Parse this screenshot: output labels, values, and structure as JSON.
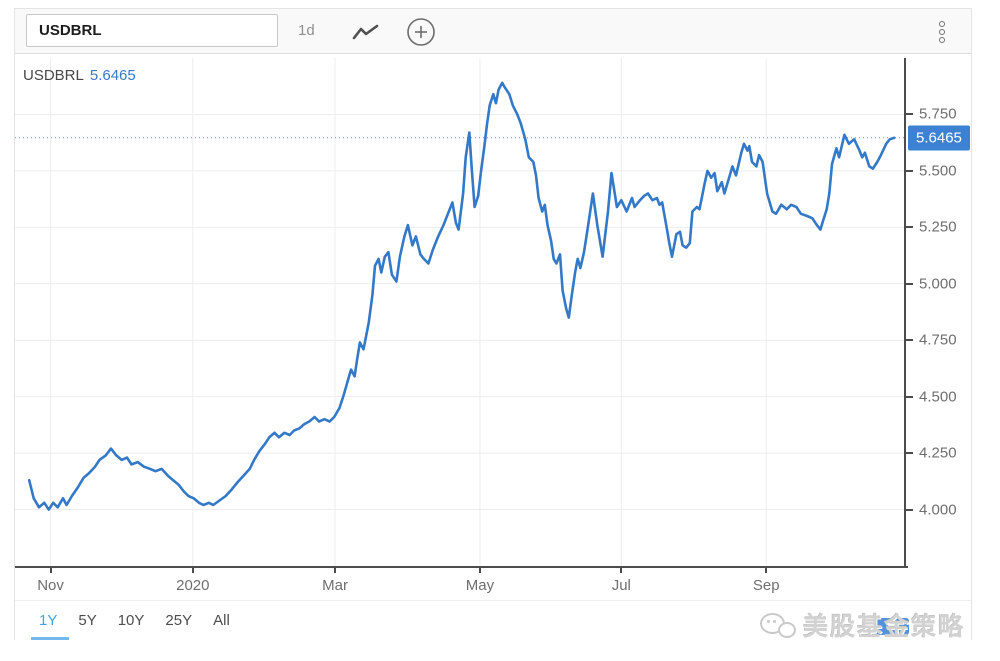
{
  "toolbar": {
    "symbol_value": "USDBRL",
    "interval": "1d"
  },
  "legend": {
    "symbol": "USDBRL",
    "price": "5.6465"
  },
  "price_axis": {
    "current_price_label": "5.6465"
  },
  "range_selector": {
    "options": [
      "1Y",
      "5Y",
      "10Y",
      "25Y",
      "All"
    ],
    "active": "1Y"
  },
  "watermark": {
    "text": "美股基金策略"
  },
  "colors": {
    "line_blue": "#3379c8",
    "price_label_bg": "#3d82d2",
    "active_range_blue": "#3fa2e4",
    "dotted_price_line": "#5b9bd5"
  },
  "chart_data": {
    "type": "line",
    "title": "USDBRL 1Y daily line chart",
    "series_name": "USDBRL",
    "current_value": 5.6465,
    "ylim": [
      3.75,
      6.0
    ],
    "y_tick_labels": [
      "4.000",
      "4.250",
      "4.500",
      "4.750",
      "5.000",
      "5.250",
      "5.500",
      "5.750"
    ],
    "x_ticks": [
      {
        "label": "Nov",
        "f": 0.04
      },
      {
        "label": "2020",
        "f": 0.2
      },
      {
        "label": "Mar",
        "f": 0.36
      },
      {
        "label": "May",
        "f": 0.523
      },
      {
        "label": "Jul",
        "f": 0.682
      },
      {
        "label": "Sep",
        "f": 0.845
      }
    ],
    "x_axis_note": "f = fraction of time axis from late Oct 2019 (0) to late Oct 2020 (1)",
    "grid": true,
    "line_color": "#3379c8",
    "points": [
      [
        0.016,
        4.13
      ],
      [
        0.021,
        4.05
      ],
      [
        0.027,
        4.01
      ],
      [
        0.033,
        4.03
      ],
      [
        0.038,
        4.0
      ],
      [
        0.043,
        4.03
      ],
      [
        0.048,
        4.01
      ],
      [
        0.054,
        4.05
      ],
      [
        0.058,
        4.02
      ],
      [
        0.064,
        4.06
      ],
      [
        0.071,
        4.1
      ],
      [
        0.077,
        4.14
      ],
      [
        0.083,
        4.16
      ],
      [
        0.09,
        4.19
      ],
      [
        0.095,
        4.22
      ],
      [
        0.102,
        4.24
      ],
      [
        0.108,
        4.27
      ],
      [
        0.114,
        4.24
      ],
      [
        0.12,
        4.22
      ],
      [
        0.126,
        4.23
      ],
      [
        0.131,
        4.2
      ],
      [
        0.138,
        4.21
      ],
      [
        0.145,
        4.19
      ],
      [
        0.152,
        4.18
      ],
      [
        0.158,
        4.17
      ],
      [
        0.165,
        4.18
      ],
      [
        0.172,
        4.15
      ],
      [
        0.178,
        4.13
      ],
      [
        0.184,
        4.11
      ],
      [
        0.19,
        4.08
      ],
      [
        0.195,
        4.06
      ],
      [
        0.201,
        4.05
      ],
      [
        0.207,
        4.03
      ],
      [
        0.212,
        4.02
      ],
      [
        0.218,
        4.03
      ],
      [
        0.223,
        4.02
      ],
      [
        0.23,
        4.04
      ],
      [
        0.237,
        4.06
      ],
      [
        0.244,
        4.09
      ],
      [
        0.25,
        4.12
      ],
      [
        0.257,
        4.15
      ],
      [
        0.264,
        4.18
      ],
      [
        0.269,
        4.22
      ],
      [
        0.275,
        4.26
      ],
      [
        0.281,
        4.29
      ],
      [
        0.286,
        4.32
      ],
      [
        0.292,
        4.34
      ],
      [
        0.297,
        4.32
      ],
      [
        0.303,
        4.34
      ],
      [
        0.309,
        4.33
      ],
      [
        0.314,
        4.35
      ],
      [
        0.32,
        4.36
      ],
      [
        0.326,
        4.38
      ],
      [
        0.331,
        4.39
      ],
      [
        0.337,
        4.41
      ],
      [
        0.342,
        4.39
      ],
      [
        0.348,
        4.4
      ],
      [
        0.354,
        4.39
      ],
      [
        0.359,
        4.41
      ],
      [
        0.365,
        4.45
      ],
      [
        0.37,
        4.51
      ],
      [
        0.375,
        4.58
      ],
      [
        0.378,
        4.62
      ],
      [
        0.382,
        4.59
      ],
      [
        0.385,
        4.67
      ],
      [
        0.388,
        4.74
      ],
      [
        0.392,
        4.71
      ],
      [
        0.395,
        4.77
      ],
      [
        0.398,
        4.83
      ],
      [
        0.402,
        4.95
      ],
      [
        0.405,
        5.08
      ],
      [
        0.409,
        5.11
      ],
      [
        0.412,
        5.05
      ],
      [
        0.416,
        5.12
      ],
      [
        0.42,
        5.14
      ],
      [
        0.424,
        5.04
      ],
      [
        0.429,
        5.01
      ],
      [
        0.433,
        5.12
      ],
      [
        0.438,
        5.21
      ],
      [
        0.442,
        5.26
      ],
      [
        0.447,
        5.17
      ],
      [
        0.451,
        5.21
      ],
      [
        0.456,
        5.13
      ],
      [
        0.46,
        5.11
      ],
      [
        0.465,
        5.09
      ],
      [
        0.47,
        5.15
      ],
      [
        0.476,
        5.21
      ],
      [
        0.482,
        5.26
      ],
      [
        0.487,
        5.31
      ],
      [
        0.492,
        5.36
      ],
      [
        0.496,
        5.27
      ],
      [
        0.499,
        5.24
      ],
      [
        0.504,
        5.4
      ],
      [
        0.507,
        5.56
      ],
      [
        0.511,
        5.67
      ],
      [
        0.514,
        5.5
      ],
      [
        0.517,
        5.34
      ],
      [
        0.521,
        5.39
      ],
      [
        0.524,
        5.49
      ],
      [
        0.528,
        5.61
      ],
      [
        0.531,
        5.71
      ],
      [
        0.534,
        5.79
      ],
      [
        0.538,
        5.84
      ],
      [
        0.541,
        5.8
      ],
      [
        0.544,
        5.86
      ],
      [
        0.548,
        5.89
      ],
      [
        0.551,
        5.87
      ],
      [
        0.556,
        5.84
      ],
      [
        0.56,
        5.79
      ],
      [
        0.565,
        5.75
      ],
      [
        0.569,
        5.71
      ],
      [
        0.574,
        5.64
      ],
      [
        0.578,
        5.56
      ],
      [
        0.583,
        5.54
      ],
      [
        0.586,
        5.48
      ],
      [
        0.589,
        5.38
      ],
      [
        0.593,
        5.32
      ],
      [
        0.596,
        5.35
      ],
      [
        0.599,
        5.26
      ],
      [
        0.603,
        5.19
      ],
      [
        0.606,
        5.11
      ],
      [
        0.609,
        5.09
      ],
      [
        0.613,
        5.13
      ],
      [
        0.616,
        4.97
      ],
      [
        0.62,
        4.89
      ],
      [
        0.623,
        4.85
      ],
      [
        0.626,
        4.94
      ],
      [
        0.63,
        5.05
      ],
      [
        0.633,
        5.11
      ],
      [
        0.636,
        5.07
      ],
      [
        0.64,
        5.14
      ],
      [
        0.644,
        5.24
      ],
      [
        0.65,
        5.4
      ],
      [
        0.655,
        5.26
      ],
      [
        0.661,
        5.12
      ],
      [
        0.667,
        5.32
      ],
      [
        0.671,
        5.49
      ],
      [
        0.677,
        5.34
      ],
      [
        0.682,
        5.37
      ],
      [
        0.688,
        5.32
      ],
      [
        0.694,
        5.38
      ],
      [
        0.697,
        5.34
      ],
      [
        0.703,
        5.37
      ],
      [
        0.708,
        5.39
      ],
      [
        0.712,
        5.4
      ],
      [
        0.717,
        5.37
      ],
      [
        0.722,
        5.38
      ],
      [
        0.725,
        5.35
      ],
      [
        0.728,
        5.36
      ],
      [
        0.733,
        5.25
      ],
      [
        0.736,
        5.18
      ],
      [
        0.739,
        5.12
      ],
      [
        0.744,
        5.22
      ],
      [
        0.748,
        5.23
      ],
      [
        0.751,
        5.17
      ],
      [
        0.755,
        5.16
      ],
      [
        0.759,
        5.18
      ],
      [
        0.762,
        5.32
      ],
      [
        0.767,
        5.34
      ],
      [
        0.77,
        5.33
      ],
      [
        0.776,
        5.45
      ],
      [
        0.779,
        5.5
      ],
      [
        0.783,
        5.47
      ],
      [
        0.787,
        5.49
      ],
      [
        0.79,
        5.41
      ],
      [
        0.795,
        5.45
      ],
      [
        0.798,
        5.4
      ],
      [
        0.804,
        5.48
      ],
      [
        0.807,
        5.52
      ],
      [
        0.811,
        5.48
      ],
      [
        0.817,
        5.58
      ],
      [
        0.82,
        5.62
      ],
      [
        0.824,
        5.59
      ],
      [
        0.826,
        5.61
      ],
      [
        0.829,
        5.54
      ],
      [
        0.834,
        5.52
      ],
      [
        0.837,
        5.57
      ],
      [
        0.841,
        5.54
      ],
      [
        0.846,
        5.4
      ],
      [
        0.852,
        5.32
      ],
      [
        0.856,
        5.31
      ],
      [
        0.862,
        5.35
      ],
      [
        0.868,
        5.33
      ],
      [
        0.873,
        5.35
      ],
      [
        0.879,
        5.34
      ],
      [
        0.884,
        5.31
      ],
      [
        0.891,
        5.3
      ],
      [
        0.897,
        5.29
      ],
      [
        0.902,
        5.26
      ],
      [
        0.906,
        5.24
      ],
      [
        0.909,
        5.28
      ],
      [
        0.913,
        5.33
      ],
      [
        0.916,
        5.4
      ],
      [
        0.919,
        5.53
      ],
      [
        0.924,
        5.6
      ],
      [
        0.927,
        5.56
      ],
      [
        0.933,
        5.66
      ],
      [
        0.938,
        5.62
      ],
      [
        0.944,
        5.64
      ],
      [
        0.95,
        5.59
      ],
      [
        0.953,
        5.56
      ],
      [
        0.956,
        5.58
      ],
      [
        0.961,
        5.52
      ],
      [
        0.965,
        5.51
      ],
      [
        0.97,
        5.54
      ],
      [
        0.974,
        5.57
      ],
      [
        0.98,
        5.62
      ],
      [
        0.984,
        5.64
      ],
      [
        0.989,
        5.6465
      ]
    ]
  }
}
